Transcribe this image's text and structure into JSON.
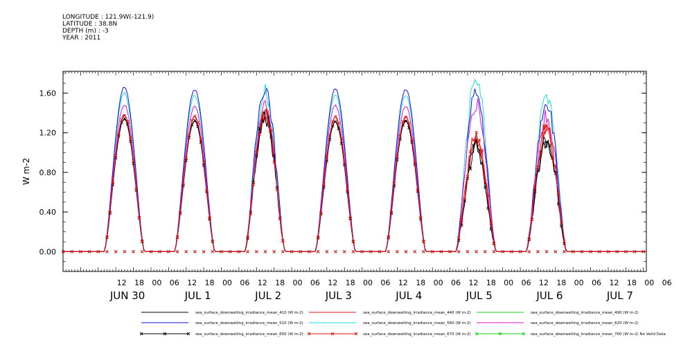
{
  "header": {
    "longitude": "LONGITUDE : 121.9W(-121.9)",
    "latitude": "LATITUDE : 38.8N",
    "depth": "DEPTH (m) : -3",
    "year": "YEAR : 2011"
  },
  "chart_data": {
    "type": "line",
    "ylabel": "W m-2",
    "ylim": [
      -0.2,
      1.82
    ],
    "y_ticks": [
      "0.00",
      "0.40",
      "0.80",
      "1.20",
      "1.60"
    ],
    "y_tick_values": [
      0,
      0.4,
      0.8,
      1.2,
      1.6
    ],
    "x_hour_ticks": [
      "12",
      "18",
      "00",
      "06",
      "12",
      "18",
      "00",
      "06",
      "12",
      "18",
      "00",
      "06",
      "12",
      "18",
      "00",
      "06",
      "12",
      "18",
      "00",
      "06",
      "12",
      "18",
      "00",
      "06",
      "12",
      "18",
      "00",
      "06",
      "12",
      "18",
      "00",
      "06"
    ],
    "x_day_labels": [
      "JUN 30",
      "JUL  1",
      "JUL  2",
      "JUL  3",
      "JUL  4",
      "JUL  5",
      "JUL  6",
      "JUL  7"
    ],
    "xlim_hours": [
      0,
      199
    ],
    "day_peaks": [
      {
        "day": "JUN 30",
        "peak_410": 1.34,
        "peak_510": 1.66,
        "peak_560": 1.6,
        "peak_620": 1.48,
        "peak_670": 1.38,
        "cloudy": false
      },
      {
        "day": "JUL  1",
        "peak_410": 1.32,
        "peak_510": 1.64,
        "peak_560": 1.58,
        "peak_620": 1.47,
        "peak_670": 1.36,
        "cloudy": false
      },
      {
        "day": "JUL  2",
        "peak_410": 1.36,
        "peak_510": 1.67,
        "peak_560": 1.62,
        "peak_620": 1.5,
        "peak_670": 1.4,
        "cloudy": true
      },
      {
        "day": "JUL  3",
        "peak_410": 1.31,
        "peak_510": 1.64,
        "peak_560": 1.58,
        "peak_620": 1.48,
        "peak_670": 1.36,
        "cloudy": false
      },
      {
        "day": "JUL  4",
        "peak_410": 1.32,
        "peak_510": 1.64,
        "peak_560": 1.58,
        "peak_620": 1.47,
        "peak_670": 1.36,
        "cloudy": false
      },
      {
        "day": "JUL  5",
        "peak_410": 1.05,
        "peak_510": 1.6,
        "peak_560": 1.76,
        "peak_620": 1.5,
        "peak_670": 1.15,
        "cloudy": true
      },
      {
        "day": "JUL  6",
        "peak_410": 1.12,
        "peak_510": 1.52,
        "peak_560": 1.56,
        "peak_620": 1.38,
        "peak_670": 1.22,
        "cloudy": true
      }
    ],
    "series": [
      {
        "name": "sea_surface_downwelling_irradiance_mean_410 (W m-2)",
        "color": "#000000",
        "marker": "none"
      },
      {
        "name": "sea_surface_downwelling_irradiance_mean_440 (W m-2)",
        "color": "#e81010",
        "marker": "none"
      },
      {
        "name": "sea_surface_downwelling_irradiance_mean_490 (W m-2)",
        "color": "#10d010",
        "marker": "none"
      },
      {
        "name": "sea_surface_downwelling_irradiance_mean_510 (W m-2)",
        "color": "#1010e0",
        "marker": "none"
      },
      {
        "name": "sea_surface_downwelling_irradiance_mean_560 (W m-2)",
        "color": "#10e0e0",
        "marker": "none"
      },
      {
        "name": "sea_surface_downwelling_irradiance_mean_620 (W m-2)",
        "color": "#e010e0",
        "marker": "none"
      },
      {
        "name": "sea_surface_downwelling_irradiance_mean_650 (W m-2)",
        "color": "#000000",
        "marker": "x"
      },
      {
        "name": "sea_surface_downwelling_irradiance_mean_670 (W m-2)",
        "color": "#e81010",
        "marker": "x"
      },
      {
        "name": "sea_surface_downwelling_irradiance_mean_700 (W m-2) No Valid Data",
        "color": "#10d010",
        "marker": "x"
      }
    ]
  }
}
